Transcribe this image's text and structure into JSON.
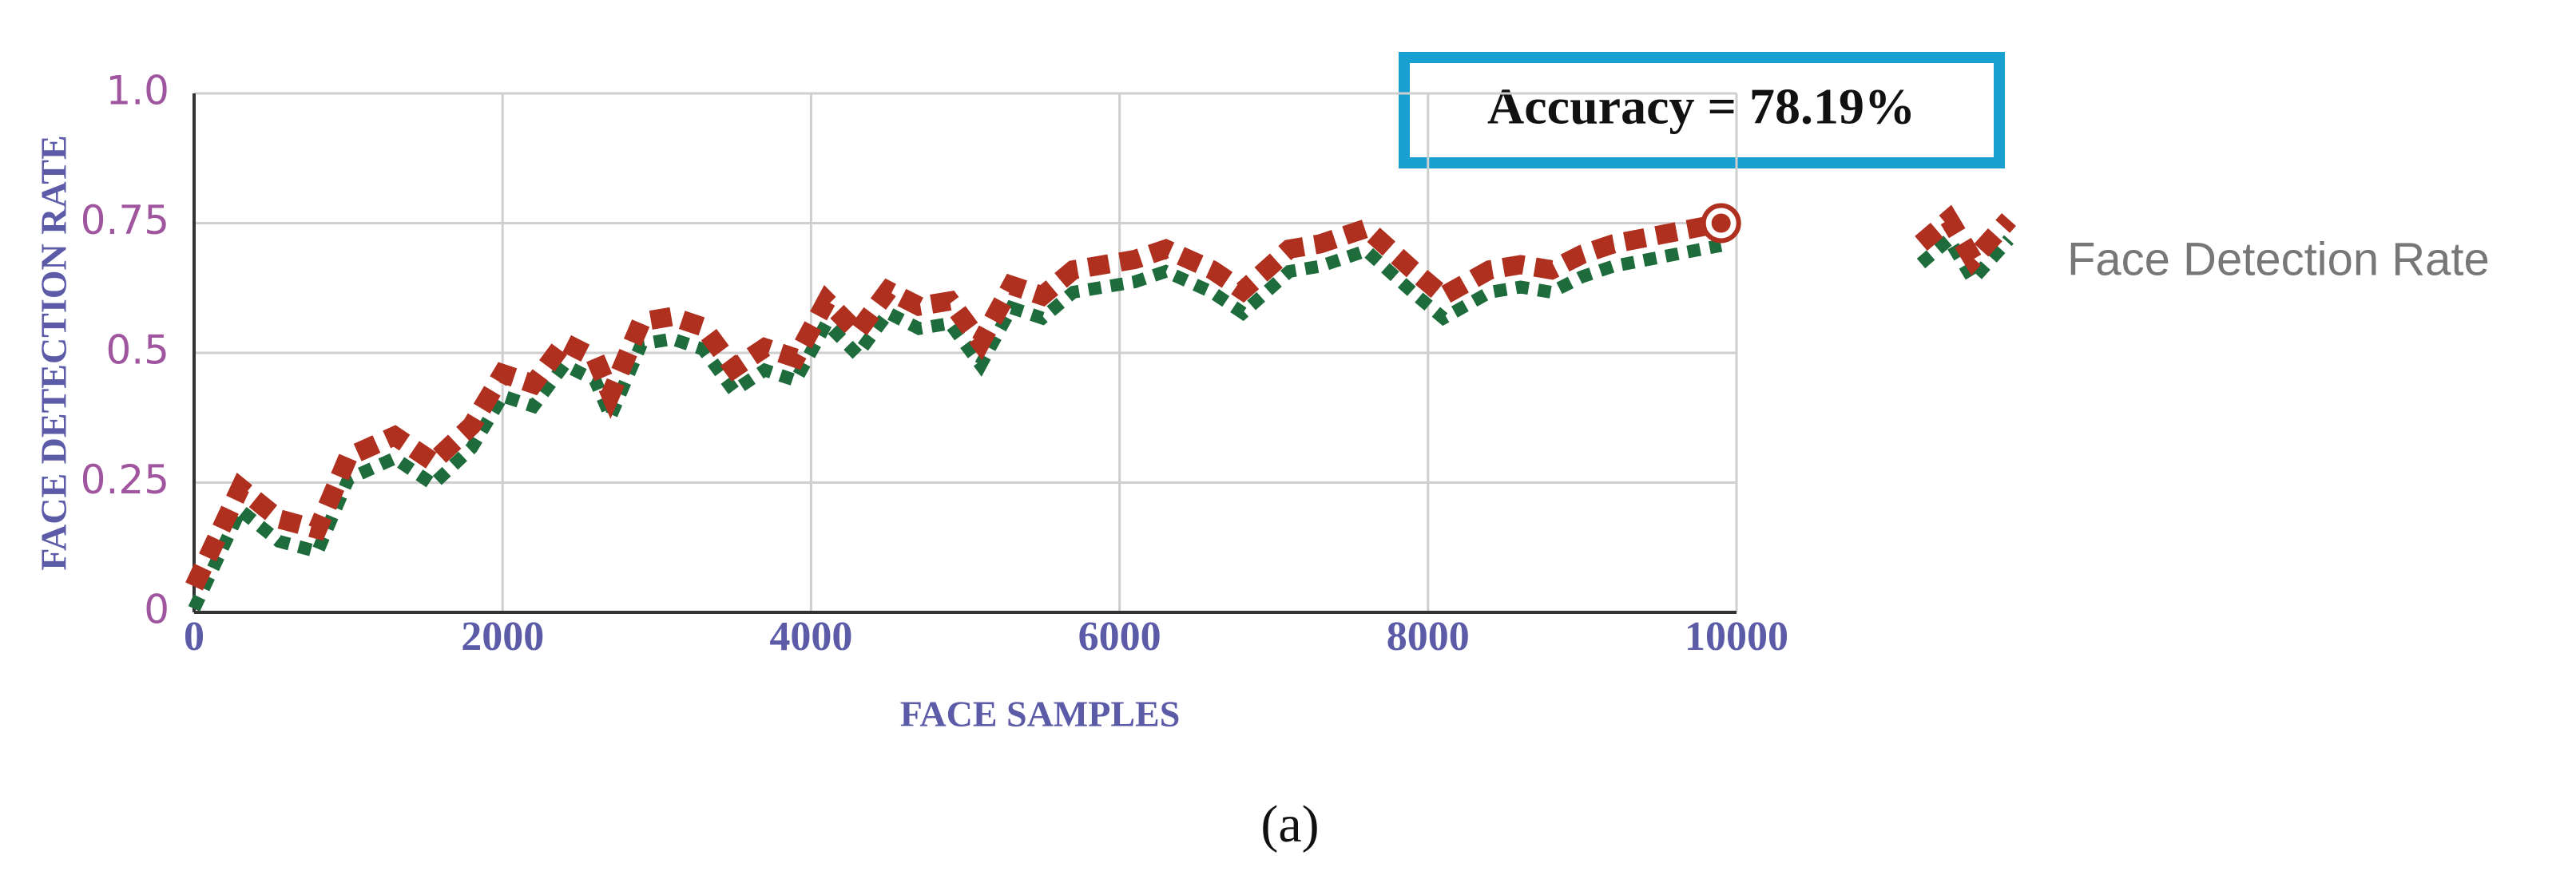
{
  "caption": "(a)",
  "chart_data": {
    "type": "line",
    "annotation": "Accuracy = 78.19%",
    "x_label": "FACE SAMPLES",
    "y_label": "FACE DETECTION RATE",
    "xlim": [
      0,
      10000
    ],
    "xticks": [
      0,
      2000,
      4000,
      6000,
      8000,
      10000
    ],
    "ylim": [
      0,
      1
    ],
    "yticks": [
      0,
      0.25,
      0.5,
      0.75,
      {
        "value": 1,
        "label": "1.0"
      }
    ],
    "grid": true,
    "x": [
      0,
      300,
      550,
      800,
      1000,
      1300,
      1550,
      1800,
      2000,
      2200,
      2400,
      2600,
      2700,
      2900,
      3100,
      3300,
      3500,
      3700,
      3900,
      4100,
      4300,
      4500,
      4700,
      4900,
      5100,
      5300,
      5500,
      5700,
      5900,
      6100,
      6300,
      6600,
      6800,
      7100,
      7300,
      7600,
      7900,
      8100,
      8400,
      8600,
      8800,
      9000,
      9200,
      9900
    ],
    "series": [
      {
        "name": "Face Detection Rate",
        "color": "#b03020",
        "shadow_color": "#1e6b3c",
        "values": [
          0.05,
          0.24,
          0.18,
          0.16,
          0.3,
          0.34,
          0.29,
          0.36,
          0.46,
          0.44,
          0.52,
          0.49,
          0.42,
          0.56,
          0.57,
          0.55,
          0.47,
          0.51,
          0.49,
          0.6,
          0.54,
          0.62,
          0.59,
          0.6,
          0.52,
          0.63,
          0.61,
          0.66,
          0.67,
          0.68,
          0.7,
          0.66,
          0.62,
          0.7,
          0.71,
          0.74,
          0.66,
          0.61,
          0.66,
          0.67,
          0.66,
          0.69,
          0.71,
          0.75
        ]
      }
    ]
  }
}
